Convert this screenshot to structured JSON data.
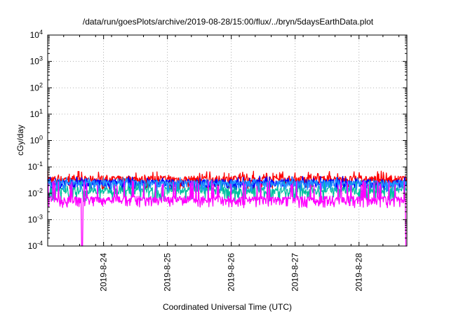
{
  "chart_data": {
    "type": "line",
    "title": "/data/run/goesPlots/archive/2019-08-28/15:00/flux/../bryn/5daysEarthData.plot",
    "xlabel": "Coordinated Universal Time (UTC)",
    "ylabel": "cGy/day",
    "yscale": "log",
    "ylim": [
      0.0001,
      10000
    ],
    "xlim": [
      "2019-08-23 03:00",
      "2019-08-28 18:00"
    ],
    "y_ticks": [
      {
        "base": "10",
        "exp": "-4",
        "value": 0.0001
      },
      {
        "base": "10",
        "exp": "-3",
        "value": 0.001
      },
      {
        "base": "10",
        "exp": "-2",
        "value": 0.01
      },
      {
        "base": "10",
        "exp": "-1",
        "value": 0.1
      },
      {
        "base": "10",
        "exp": "0",
        "value": 1
      },
      {
        "base": "10",
        "exp": "1",
        "value": 10
      },
      {
        "base": "10",
        "exp": "2",
        "value": 100
      },
      {
        "base": "10",
        "exp": "3",
        "value": 1000
      },
      {
        "base": "10",
        "exp": "4",
        "value": 10000
      }
    ],
    "x_ticks": [
      {
        "label": "2019-8-24",
        "value": "2019-08-24 00:00"
      },
      {
        "label": "2019-8-25",
        "value": "2019-08-25 00:00"
      },
      {
        "label": "2019-8-26",
        "value": "2019-08-26 00:00"
      },
      {
        "label": "2019-8-27",
        "value": "2019-08-27 00:00"
      },
      {
        "label": "2019-8-28",
        "value": "2019-08-28 00:00"
      }
    ],
    "grid": true,
    "series": [
      {
        "color": "#ff0000",
        "base": 0.035,
        "spread_low": 0.018,
        "spread_high": 0.07
      },
      {
        "color": "#0000ff",
        "base": 0.026,
        "spread_low": 0.016,
        "spread_high": 0.045
      },
      {
        "color": "#00c0a0",
        "base": 0.013,
        "spread_low": 0.006,
        "spread_high": 0.03
      },
      {
        "color": "#1e90ff",
        "base": 0.024,
        "spread_low": 0.014,
        "spread_high": 0.04
      },
      {
        "color": "#ff00ff",
        "base": 0.006,
        "spread_low": 0.0035,
        "spread_high": 0.03,
        "dropouts": [
          "2019-08-23 16:00",
          "2019-08-28 17:50"
        ]
      }
    ]
  }
}
